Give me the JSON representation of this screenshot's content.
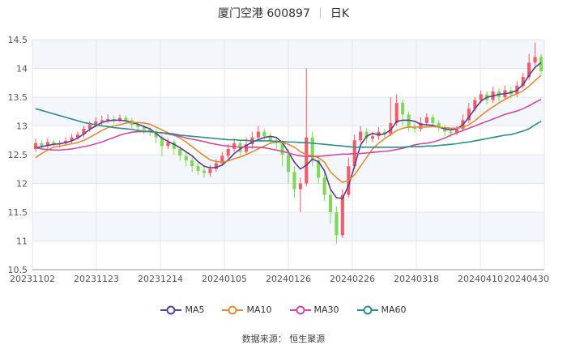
{
  "header": {
    "title": "厦门空港 600897",
    "period": "日K"
  },
  "source_label": "数据来源：  恒生聚源",
  "colors": {
    "up": "#f45b69",
    "down": "#7ed957",
    "grid": "#e6e6e6",
    "band": "#f3f6fb",
    "ma5": "#5a3d8f",
    "ma10": "#e08a3c",
    "ma30": "#d04aa0",
    "ma60": "#2f8a8a"
  },
  "chart_data": {
    "type": "candlestick",
    "title": "厦门空港 600897 日K",
    "ylim": [
      10.5,
      14.5
    ],
    "yticks": [
      "14.5",
      "14",
      "13.5",
      "13",
      "12.5",
      "12",
      "11.5",
      "11",
      "10.5"
    ],
    "xticks": [
      "20231102",
      "20231123",
      "20231214",
      "20240105",
      "20240126",
      "20240226",
      "20240318",
      "20240410",
      "20240430"
    ],
    "legend": [
      "MA5",
      "MA10",
      "MA30",
      "MA60"
    ],
    "legend_position": "bottom",
    "candles": [
      [
        12.6,
        12.7,
        12.55,
        12.78
      ],
      [
        12.7,
        12.65,
        12.6,
        12.75
      ],
      [
        12.65,
        12.72,
        12.6,
        12.78
      ],
      [
        12.72,
        12.68,
        12.62,
        12.76
      ],
      [
        12.68,
        12.7,
        12.62,
        12.75
      ],
      [
        12.7,
        12.74,
        12.66,
        12.8
      ],
      [
        12.74,
        12.8,
        12.7,
        12.86
      ],
      [
        12.8,
        12.85,
        12.76,
        12.9
      ],
      [
        12.85,
        12.95,
        12.8,
        13.0
      ],
      [
        12.95,
        13.02,
        12.9,
        13.08
      ],
      [
        13.02,
        13.08,
        12.98,
        13.15
      ],
      [
        13.08,
        13.1,
        13.0,
        13.18
      ],
      [
        13.1,
        13.12,
        13.05,
        13.2
      ],
      [
        13.12,
        13.1,
        13.04,
        13.18
      ],
      [
        13.1,
        13.14,
        13.06,
        13.2
      ],
      [
        13.14,
        13.1,
        13.04,
        13.18
      ],
      [
        13.1,
        13.02,
        12.96,
        13.14
      ],
      [
        13.02,
        12.98,
        12.9,
        13.06
      ],
      [
        12.98,
        12.94,
        12.86,
        13.02
      ],
      [
        12.94,
        12.9,
        12.82,
        12.98
      ],
      [
        12.9,
        12.8,
        12.7,
        12.95
      ],
      [
        12.8,
        12.65,
        12.48,
        12.85
      ],
      [
        12.65,
        12.72,
        12.6,
        12.78
      ],
      [
        12.72,
        12.6,
        12.5,
        12.76
      ],
      [
        12.6,
        12.48,
        12.4,
        12.65
      ],
      [
        12.48,
        12.4,
        12.3,
        12.55
      ],
      [
        12.4,
        12.3,
        12.2,
        12.45
      ],
      [
        12.3,
        12.22,
        12.15,
        12.36
      ],
      [
        12.22,
        12.18,
        12.1,
        12.3
      ],
      [
        12.18,
        12.25,
        12.12,
        12.32
      ],
      [
        12.25,
        12.35,
        12.2,
        12.42
      ],
      [
        12.35,
        12.48,
        12.3,
        12.55
      ],
      [
        12.48,
        12.6,
        12.44,
        12.68
      ],
      [
        12.6,
        12.7,
        12.55,
        12.78
      ],
      [
        12.7,
        12.55,
        12.48,
        12.76
      ],
      [
        12.55,
        12.68,
        12.5,
        12.8
      ],
      [
        12.68,
        12.8,
        12.6,
        12.9
      ],
      [
        12.8,
        12.9,
        12.75,
        13.0
      ],
      [
        12.9,
        12.82,
        12.76,
        12.95
      ],
      [
        12.82,
        12.75,
        12.68,
        12.88
      ],
      [
        12.75,
        12.7,
        12.6,
        12.8
      ],
      [
        12.7,
        12.5,
        12.3,
        12.75
      ],
      [
        12.5,
        12.2,
        12.0,
        12.6
      ],
      [
        12.2,
        11.9,
        11.75,
        12.3
      ],
      [
        11.9,
        12.0,
        11.5,
        12.1
      ],
      [
        12.0,
        12.8,
        11.95,
        14.0
      ],
      [
        12.8,
        12.4,
        12.3,
        12.9
      ],
      [
        12.4,
        12.1,
        12.0,
        12.5
      ],
      [
        12.1,
        11.8,
        11.7,
        12.2
      ],
      [
        11.8,
        11.5,
        11.3,
        11.9
      ],
      [
        11.5,
        11.1,
        10.95,
        11.6
      ],
      [
        11.1,
        11.8,
        11.05,
        11.9
      ],
      [
        11.8,
        12.3,
        11.75,
        12.45
      ],
      [
        12.3,
        12.75,
        12.25,
        12.85
      ],
      [
        12.75,
        12.9,
        12.7,
        13.0
      ],
      [
        12.9,
        12.78,
        12.7,
        12.95
      ],
      [
        12.78,
        12.82,
        12.72,
        12.9
      ],
      [
        12.82,
        12.9,
        12.76,
        12.98
      ],
      [
        12.9,
        12.86,
        12.8,
        12.95
      ],
      [
        12.86,
        13.05,
        12.82,
        13.5
      ],
      [
        13.05,
        13.4,
        13.0,
        13.55
      ],
      [
        13.4,
        13.2,
        13.0,
        13.45
      ],
      [
        13.2,
        12.98,
        12.9,
        13.25
      ],
      [
        12.98,
        12.95,
        12.88,
        13.05
      ],
      [
        12.95,
        13.05,
        12.9,
        13.15
      ],
      [
        13.05,
        13.15,
        13.0,
        13.22
      ],
      [
        13.15,
        13.05,
        12.98,
        13.2
      ],
      [
        13.05,
        12.98,
        12.9,
        13.1
      ],
      [
        12.98,
        12.9,
        12.82,
        13.02
      ],
      [
        12.9,
        12.88,
        12.8,
        12.95
      ],
      [
        12.88,
        12.95,
        12.84,
        13.0
      ],
      [
        12.95,
        13.1,
        12.9,
        13.2
      ],
      [
        13.1,
        13.3,
        13.05,
        13.4
      ],
      [
        13.3,
        13.45,
        13.25,
        13.5
      ],
      [
        13.45,
        13.55,
        13.4,
        13.62
      ],
      [
        13.55,
        13.45,
        13.38,
        13.6
      ],
      [
        13.45,
        13.6,
        13.4,
        13.68
      ],
      [
        13.6,
        13.5,
        13.42,
        13.65
      ],
      [
        13.5,
        13.62,
        13.45,
        13.7
      ],
      [
        13.62,
        13.55,
        13.48,
        13.68
      ],
      [
        13.55,
        13.7,
        13.5,
        13.78
      ],
      [
        13.7,
        13.85,
        13.65,
        13.92
      ],
      [
        13.85,
        14.1,
        13.8,
        14.25
      ],
      [
        14.1,
        14.2,
        14.05,
        14.45
      ],
      [
        14.2,
        13.95,
        13.9,
        14.25
      ]
    ],
    "series": [
      {
        "name": "MA5",
        "values": [
          12.62,
          12.64,
          12.66,
          12.68,
          12.69,
          12.71,
          12.74,
          12.79,
          12.86,
          12.94,
          13.0,
          13.06,
          13.09,
          13.1,
          13.1,
          13.09,
          13.06,
          13.03,
          12.99,
          12.95,
          12.87,
          12.79,
          12.73,
          12.68,
          12.62,
          12.55,
          12.48,
          12.38,
          12.3,
          12.27,
          12.28,
          12.32,
          12.41,
          12.52,
          12.6,
          12.66,
          12.72,
          12.76,
          12.8,
          12.82,
          12.8,
          12.71,
          12.55,
          12.37,
          12.25,
          12.32,
          12.42,
          12.38,
          12.22,
          11.9,
          11.75,
          11.74,
          11.96,
          12.3,
          12.67,
          12.82,
          12.87,
          12.85,
          12.86,
          12.93,
          13.08,
          13.1,
          13.1,
          13.08,
          13.03,
          13.02,
          13.01,
          12.98,
          12.95,
          12.93,
          12.95,
          13.02,
          13.15,
          13.3,
          13.43,
          13.5,
          13.52,
          13.55,
          13.56,
          13.58,
          13.62,
          13.72,
          13.88,
          14.02,
          14.1
        ]
      },
      {
        "name": "MA10",
        "values": [
          12.45,
          12.52,
          12.58,
          12.63,
          12.65,
          12.67,
          12.69,
          12.71,
          12.75,
          12.8,
          12.86,
          12.92,
          12.97,
          13.0,
          13.02,
          13.05,
          13.06,
          13.06,
          13.05,
          13.03,
          12.98,
          12.93,
          12.88,
          12.84,
          12.79,
          12.72,
          12.64,
          12.56,
          12.48,
          12.41,
          12.38,
          12.37,
          12.39,
          12.43,
          12.46,
          12.5,
          12.55,
          12.6,
          12.65,
          12.7,
          12.72,
          12.71,
          12.68,
          12.63,
          12.55,
          12.5,
          12.48,
          12.45,
          12.37,
          12.2,
          12.1,
          12.02,
          12.05,
          12.15,
          12.3,
          12.45,
          12.6,
          12.7,
          12.78,
          12.85,
          12.92,
          12.96,
          12.98,
          12.98,
          12.98,
          12.98,
          12.99,
          12.98,
          12.97,
          12.96,
          12.96,
          12.98,
          13.02,
          13.09,
          13.18,
          13.26,
          13.33,
          13.4,
          13.46,
          13.52,
          13.56,
          13.61,
          13.69,
          13.79,
          13.88
        ]
      },
      {
        "name": "MA30",
        "values": [
          12.62,
          12.6,
          12.59,
          12.58,
          12.58,
          12.59,
          12.6,
          12.62,
          12.64,
          12.66,
          12.69,
          12.72,
          12.76,
          12.8,
          12.84,
          12.87,
          12.89,
          12.9,
          12.9,
          12.9,
          12.89,
          12.88,
          12.86,
          12.84,
          12.82,
          12.79,
          12.77,
          12.75,
          12.73,
          12.7,
          12.68,
          12.66,
          12.65,
          12.64,
          12.63,
          12.63,
          12.63,
          12.63,
          12.62,
          12.6,
          12.58,
          12.56,
          12.53,
          12.5,
          12.48,
          12.47,
          12.47,
          12.47,
          12.48,
          12.49,
          12.5,
          12.51,
          12.51,
          12.52,
          12.52,
          12.53,
          12.54,
          12.55,
          12.56,
          12.57,
          12.59,
          12.61,
          12.64,
          12.67,
          12.69,
          12.7,
          12.72,
          12.75,
          12.79,
          12.84,
          12.88,
          12.92,
          12.96,
          13.0,
          13.04,
          13.08,
          13.12,
          13.16,
          13.2,
          13.23,
          13.26,
          13.3,
          13.35,
          13.41,
          13.46
        ]
      },
      {
        "name": "MA60",
        "values": [
          13.3,
          13.27,
          13.24,
          13.21,
          13.18,
          13.15,
          13.12,
          13.09,
          13.06,
          13.04,
          13.02,
          13.0,
          12.99,
          12.97,
          12.96,
          12.95,
          12.94,
          12.92,
          12.91,
          12.9,
          12.89,
          12.88,
          12.87,
          12.86,
          12.84,
          12.83,
          12.82,
          12.81,
          12.8,
          12.79,
          12.78,
          12.77,
          12.76,
          12.76,
          12.75,
          12.75,
          12.74,
          12.74,
          12.74,
          12.74,
          12.73,
          12.73,
          12.72,
          12.72,
          12.71,
          12.71,
          12.7,
          12.69,
          12.68,
          12.67,
          12.66,
          12.65,
          12.64,
          12.63,
          12.63,
          12.63,
          12.63,
          12.63,
          12.63,
          12.63,
          12.63,
          12.63,
          12.64,
          12.64,
          12.64,
          12.65,
          12.65,
          12.66,
          12.67,
          12.68,
          12.69,
          12.71,
          12.72,
          12.74,
          12.76,
          12.78,
          12.8,
          12.82,
          12.84,
          12.85,
          12.88,
          12.91,
          12.95,
          13.02,
          13.08
        ]
      }
    ]
  }
}
